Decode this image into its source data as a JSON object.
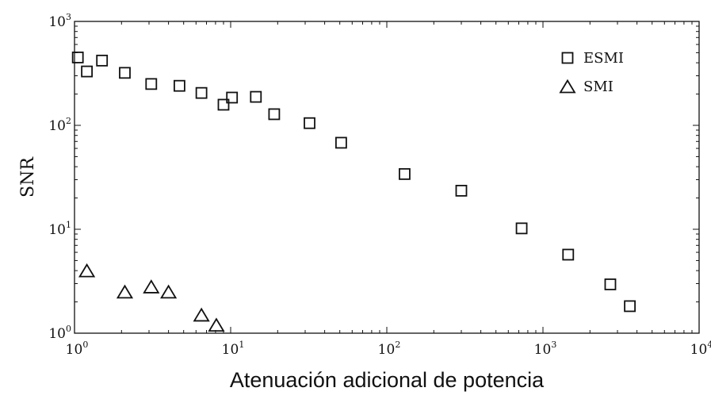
{
  "chart_data": {
    "type": "scatter",
    "xscale": "log",
    "yscale": "log",
    "xlim": [
      1,
      10000
    ],
    "ylim": [
      1,
      1000
    ],
    "xlabel": "Atenuación adicional de potencia",
    "ylabel": "SNR",
    "xticks": [
      {
        "base": "10",
        "exp": "0"
      },
      {
        "base": "10",
        "exp": "1"
      },
      {
        "base": "10",
        "exp": "2"
      },
      {
        "base": "10",
        "exp": "3"
      },
      {
        "base": "10",
        "exp": "4"
      }
    ],
    "yticks": [
      {
        "base": "10",
        "exp": "0"
      },
      {
        "base": "10",
        "exp": "1"
      },
      {
        "base": "10",
        "exp": "2"
      },
      {
        "base": "10",
        "exp": "3"
      }
    ],
    "legend_position": "top-right",
    "series": [
      {
        "name": "ESMI",
        "marker": "square",
        "points": [
          [
            1.05,
            450
          ],
          [
            1.2,
            330
          ],
          [
            1.5,
            420
          ],
          [
            2.1,
            320
          ],
          [
            3.1,
            250
          ],
          [
            4.7,
            240
          ],
          [
            6.5,
            205
          ],
          [
            9.0,
            158
          ],
          [
            10.2,
            185
          ],
          [
            14.5,
            188
          ],
          [
            19.0,
            128
          ],
          [
            32,
            105
          ],
          [
            51,
            68
          ],
          [
            130,
            34
          ],
          [
            300,
            23.5
          ],
          [
            730,
            10.2
          ],
          [
            1450,
            5.7
          ],
          [
            2700,
            2.95
          ],
          [
            3600,
            1.82
          ]
        ]
      },
      {
        "name": "SMI",
        "marker": "triangle",
        "points": [
          [
            1.2,
            4.0
          ],
          [
            2.1,
            2.5
          ],
          [
            3.1,
            2.8
          ],
          [
            4.0,
            2.5
          ],
          [
            6.5,
            1.5
          ],
          [
            8.1,
            1.2
          ]
        ]
      }
    ]
  }
}
